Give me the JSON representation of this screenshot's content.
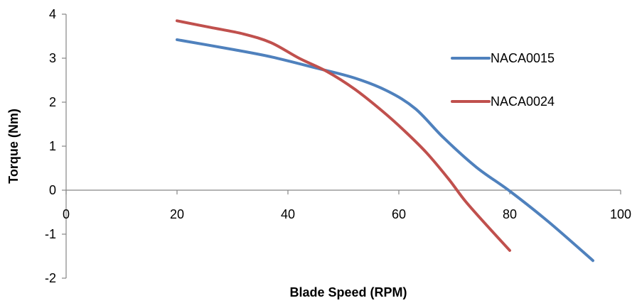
{
  "chart_data": {
    "type": "line",
    "xlabel": "Blade Speed (RPM)",
    "ylabel": "Torque (Nm)",
    "xlim": [
      0,
      100
    ],
    "ylim": [
      -2,
      4
    ],
    "x_ticks": [
      "0",
      "20",
      "40",
      "60",
      "80",
      "100"
    ],
    "y_ticks": [
      "4",
      "3",
      "2",
      "1",
      "0",
      "-1",
      "-2"
    ],
    "grid": false,
    "legend_position": "right",
    "series": [
      {
        "name": "NACA0015",
        "color": "#4F81BD",
        "points": [
          [
            20,
            3.42
          ],
          [
            30,
            3.2
          ],
          [
            37,
            3.03
          ],
          [
            45,
            2.78
          ],
          [
            52,
            2.55
          ],
          [
            58,
            2.25
          ],
          [
            63,
            1.85
          ],
          [
            68,
            1.2
          ],
          [
            74,
            0.52
          ],
          [
            80,
            -0.02
          ],
          [
            87,
            -0.72
          ],
          [
            95,
            -1.6
          ]
        ]
      },
      {
        "name": "NACA0024",
        "color": "#C0504D",
        "points": [
          [
            20,
            3.85
          ],
          [
            26,
            3.7
          ],
          [
            32,
            3.55
          ],
          [
            37,
            3.35
          ],
          [
            42,
            3.0
          ],
          [
            47,
            2.7
          ],
          [
            52,
            2.3
          ],
          [
            57,
            1.8
          ],
          [
            61,
            1.35
          ],
          [
            65,
            0.85
          ],
          [
            69,
            0.25
          ],
          [
            72,
            -0.25
          ],
          [
            76,
            -0.82
          ],
          [
            80,
            -1.37
          ]
        ]
      }
    ]
  }
}
